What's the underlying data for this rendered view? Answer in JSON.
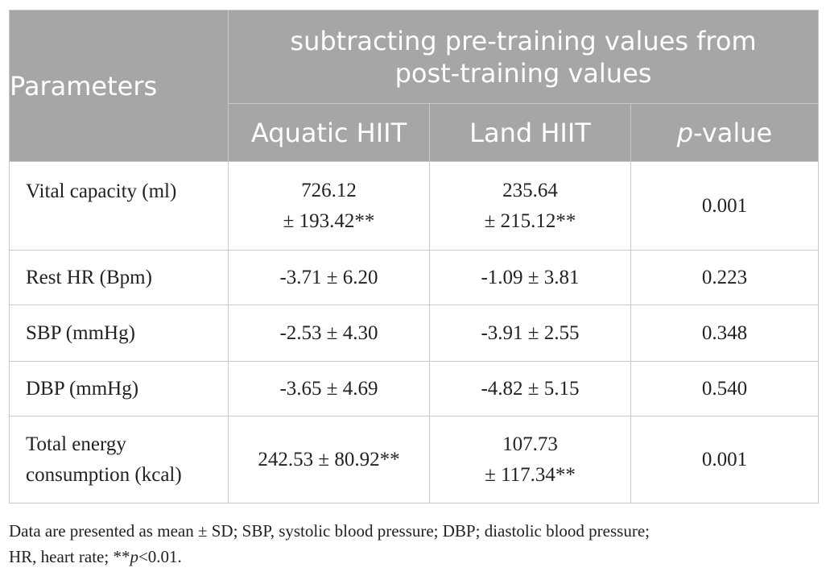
{
  "table": {
    "header": {
      "parameters": "Parameters",
      "group": "subtracting pre-training values from post-training values",
      "group_line1": "subtracting pre-training values from",
      "group_line2": "post-training values",
      "col_aquatic": "Aquatic HIIT",
      "col_land": "Land HIIT",
      "col_p_italic": "p",
      "col_p_rest": "-value"
    },
    "rows": [
      {
        "parameter": "Vital capacity (ml)",
        "aquatic": [
          "726.12",
          "± 193.42**"
        ],
        "land": [
          "235.64",
          "± 215.12**"
        ],
        "p": "0.001"
      },
      {
        "parameter": "Rest HR (Bpm)",
        "aquatic": [
          "-3.71 ± 6.20"
        ],
        "land": [
          "-1.09 ± 3.81"
        ],
        "p": "0.223"
      },
      {
        "parameter": "SBP (mmHg)",
        "aquatic": [
          "-2.53 ± 4.30"
        ],
        "land": [
          "-3.91 ± 2.55"
        ],
        "p": "0.348"
      },
      {
        "parameter": "DBP (mmHg)",
        "aquatic": [
          "-3.65 ± 4.69"
        ],
        "land": [
          "-4.82 ± 5.15"
        ],
        "p": "0.540"
      },
      {
        "parameter_lines": [
          "Total energy",
          "consumption (kcal)"
        ],
        "aquatic": [
          "242.53 ± 80.92**"
        ],
        "land": [
          "107.73",
          "± 117.34**"
        ],
        "p": "0.001"
      }
    ]
  },
  "footnote": {
    "line1": "Data are presented as mean ± SD; SBP, systolic blood pressure; DBP; diastolic blood pressure;",
    "line2_prefix": "HR, heart rate; **",
    "line2_italic": "p",
    "line2_suffix": "<0.01."
  }
}
